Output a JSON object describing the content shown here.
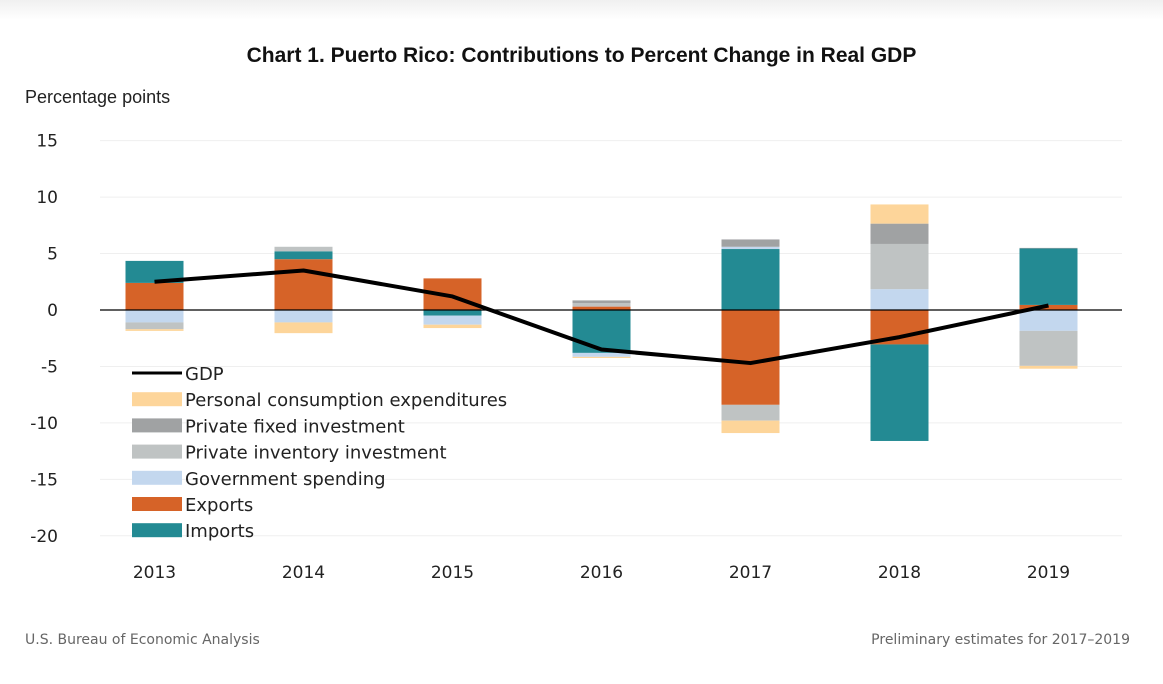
{
  "chart_data": {
    "type": "bar",
    "stacked": true,
    "title": "Chart 1. Puerto Rico: Contributions to Percent Change in Real GDP",
    "ylabel": "Percentage points",
    "xlabel": "",
    "ylim": [
      -20,
      15
    ],
    "yticks": [
      15,
      10,
      5,
      0,
      -5,
      -10,
      -15,
      -20
    ],
    "grid": true,
    "legend_position": "bottom-left",
    "categories": [
      "2013",
      "2014",
      "2015",
      "2016",
      "2017",
      "2018",
      "2019"
    ],
    "series": [
      {
        "name": "Exports",
        "color": "#D66328",
        "values": [
          2.4,
          4.5,
          2.8,
          0.3,
          -8.4,
          -3.05,
          0.45
        ]
      },
      {
        "name": "Imports",
        "color": "#238A93",
        "values": [
          1.95,
          0.7,
          -0.5,
          -3.8,
          5.4,
          -8.55,
          5.0
        ]
      },
      {
        "name": "Government spending",
        "color": "#C3D7EE",
        "values": [
          -1.1,
          -1.1,
          -0.8,
          -0.35,
          0.2,
          1.85,
          -1.85
        ]
      },
      {
        "name": "Private inventory investment",
        "color": "#BFC3C3",
        "values": [
          -0.6,
          0.4,
          0,
          0.3,
          -1.4,
          4.0,
          -3.1
        ]
      },
      {
        "name": "Private fixed investment",
        "color": "#A0A2A3",
        "values": [
          0,
          0,
          0,
          0.25,
          0.65,
          1.8,
          0.05
        ]
      },
      {
        "name": "Personal consumption expenditures",
        "color": "#FDD59A",
        "values": [
          -0.15,
          -0.95,
          -0.3,
          -0.1,
          -1.1,
          1.7,
          -0.25
        ]
      }
    ],
    "line": {
      "name": "GDP",
      "color": "#000000",
      "values": [
        2.5,
        3.5,
        1.2,
        -3.5,
        -4.7,
        -2.4,
        0.4
      ]
    },
    "legend_order": [
      "GDP",
      "Personal consumption expenditures",
      "Private fixed investment",
      "Private inventory investment",
      "Government spending",
      "Exports",
      "Imports"
    ]
  },
  "footer": {
    "source": "U.S. Bureau of Economic Analysis",
    "note": "Preliminary estimates for 2017–2019"
  }
}
